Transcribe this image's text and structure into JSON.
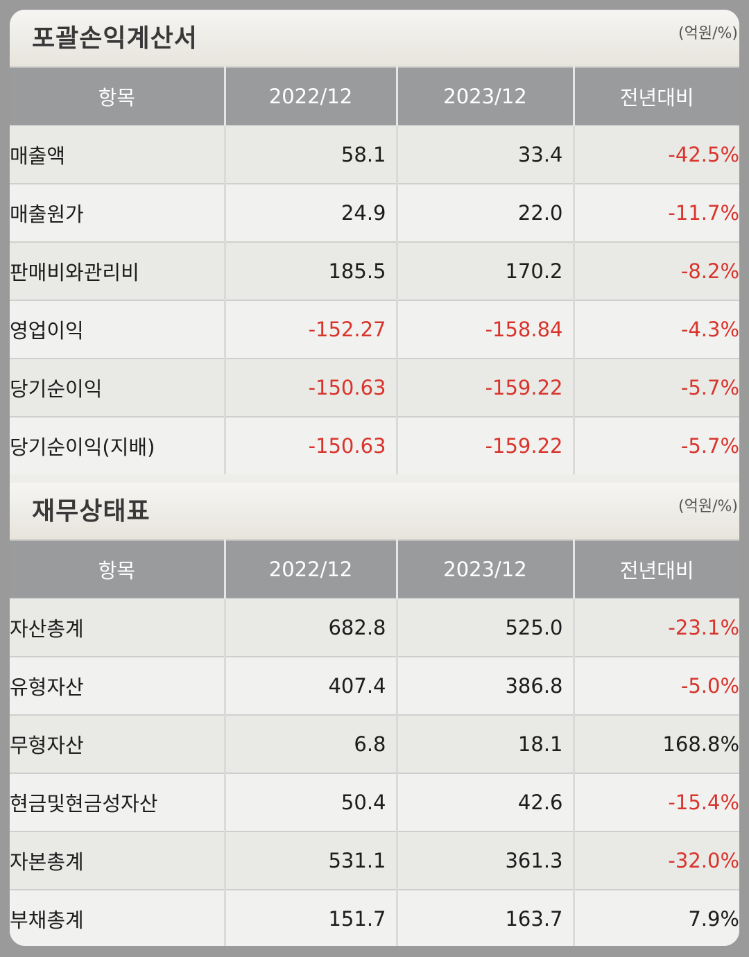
{
  "income_statement": {
    "title": "포괄손익계산서",
    "unit": "(억원/%)",
    "headers": [
      "항목",
      "2022/12",
      "2023/12",
      "전년대비"
    ],
    "rows": [
      {
        "item": "매출액",
        "y2022": "58.1",
        "y2023": "33.4",
        "yoy": "-42.5%"
      },
      {
        "item": "매출원가",
        "y2022": "24.9",
        "y2023": "22.0",
        "yoy": "-11.7%"
      },
      {
        "item": "판매비와관리비",
        "y2022": "185.5",
        "y2023": "170.2",
        "yoy": "-8.2%"
      },
      {
        "item": "영업이익",
        "y2022": "-152.27",
        "y2023": "-158.84",
        "yoy": "-4.3%"
      },
      {
        "item": "당기순이익",
        "y2022": "-150.63",
        "y2023": "-159.22",
        "yoy": "-5.7%"
      },
      {
        "item": "당기순이익(지배)",
        "y2022": "-150.63",
        "y2023": "-159.22",
        "yoy": "-5.7%"
      }
    ]
  },
  "balance_sheet": {
    "title": "재무상태표",
    "unit": "(억원/%)",
    "headers": [
      "항목",
      "2022/12",
      "2023/12",
      "전년대비"
    ],
    "rows": [
      {
        "item": "자산총계",
        "y2022": "682.8",
        "y2023": "525.0",
        "yoy": "-23.1%"
      },
      {
        "item": "유형자산",
        "y2022": "407.4",
        "y2023": "386.8",
        "yoy": "-5.0%"
      },
      {
        "item": "무형자산",
        "y2022": "6.8",
        "y2023": "18.1",
        "yoy": "168.8%"
      },
      {
        "item": "현금및현금성자산",
        "y2022": "50.4",
        "y2023": "42.6",
        "yoy": "-15.4%"
      },
      {
        "item": "자본총계",
        "y2022": "531.1",
        "y2023": "361.3",
        "yoy": "-32.0%"
      },
      {
        "item": "부채총계",
        "y2022": "151.7",
        "y2023": "163.7",
        "yoy": "7.9%"
      }
    ]
  },
  "colors": {
    "negative": "#d8342c",
    "header_bg": "#9a9b9d",
    "title_text": "#383838"
  }
}
